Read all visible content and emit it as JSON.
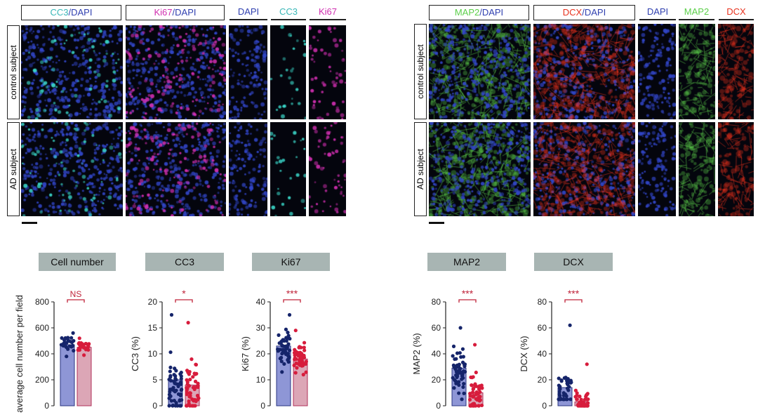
{
  "left_figure": {
    "headers": {
      "cc3_dapi": {
        "a": "CC3",
        "b": "/DAPI"
      },
      "ki67_dapi": {
        "a": "Ki67",
        "b": "/DAPI"
      },
      "dapi": "DAPI",
      "cc3": "CC3",
      "ki67": "Ki67"
    },
    "rows": [
      "control subject",
      "AD subject"
    ]
  },
  "right_figure": {
    "headers": {
      "map2_dapi": {
        "a": "MAP2",
        "b": "/DAPI"
      },
      "dcx_dapi": {
        "a": "DCX",
        "b": "/DAPI"
      },
      "dapi": "DAPI",
      "map2": "MAP2",
      "dcx": "DCX"
    },
    "rows": [
      "control subject",
      "AD subject"
    ]
  },
  "colors": {
    "dapi": "#3246c8",
    "cc3": "#3ad6c8",
    "ki67": "#d02fb0",
    "map2": "#5ccf4a",
    "dcx": "#e8321e",
    "control_bar": "#8e96d6",
    "ad_bar": "#dca6b6",
    "control_dot": "#15246a",
    "ad_dot": "#d71c3c",
    "sig": "#c0243a",
    "box": "#a8b5b3"
  },
  "chart_data": [
    {
      "type": "bar",
      "title": "Cell number",
      "categories": [
        "control subject",
        "AD subject"
      ],
      "values": [
        470,
        450
      ],
      "ylabel": "average cell number per field",
      "ylim": [
        0,
        800
      ],
      "yticks": [
        "0",
        "200",
        "400",
        "600",
        "800"
      ],
      "significance": "NS",
      "points": {
        "control": [
          [
            380,
            560
          ],
          [
            470,
            27
          ]
        ],
        "ad": [
          [
            390,
            520
          ],
          [
            455,
            25
          ]
        ]
      }
    },
    {
      "type": "bar",
      "title": "CC3",
      "categories": [
        "control subject",
        "AD subject"
      ],
      "values": [
        5,
        4
      ],
      "ylabel": "CC3 (%)",
      "ylim": [
        0,
        20
      ],
      "yticks": [
        "0",
        "5",
        "10",
        "15",
        "20"
      ],
      "significance": "*",
      "points": {
        "control": [
          [
            0,
            17.5
          ],
          [
            4,
            55
          ]
        ],
        "ad": [
          [
            0,
            16
          ],
          [
            3.5,
            55
          ]
        ]
      }
    },
    {
      "type": "bar",
      "title": "Ki67",
      "categories": [
        "control subject",
        "AD subject"
      ],
      "values": [
        23,
        18
      ],
      "ylabel": "Ki67 (%)",
      "ylim": [
        0,
        40
      ],
      "yticks": [
        "0",
        "10",
        "20",
        "30",
        "40"
      ],
      "significance": "***",
      "points": {
        "control": [
          [
            13,
            35
          ],
          [
            23,
            50
          ]
        ],
        "ad": [
          [
            12,
            29
          ],
          [
            18,
            50
          ]
        ]
      }
    },
    {
      "type": "bar",
      "title": "MAP2",
      "categories": [
        "control subject",
        "AD subject"
      ],
      "values": [
        29,
        10
      ],
      "ylabel": "MAP2 (%)",
      "ylim": [
        0,
        80
      ],
      "yticks": [
        "0",
        "20",
        "40",
        "60",
        "80"
      ],
      "significance": "***",
      "points": {
        "control": [
          [
            5,
            60
          ],
          [
            28,
            55
          ]
        ],
        "ad": [
          [
            0,
            47
          ],
          [
            8,
            55
          ]
        ]
      }
    },
    {
      "type": "bar",
      "title": "DCX",
      "categories": [
        "control subject",
        "AD subject"
      ],
      "values": [
        14,
        3
      ],
      "ylabel": "DCX (%)",
      "ylim": [
        0,
        80
      ],
      "yticks": [
        "0",
        "20",
        "40",
        "60",
        "80"
      ],
      "significance": "***",
      "points": {
        "control": [
          [
            5,
            62
          ],
          [
            12,
            45
          ]
        ],
        "ad": [
          [
            0,
            32
          ],
          [
            2,
            45
          ]
        ]
      }
    }
  ]
}
